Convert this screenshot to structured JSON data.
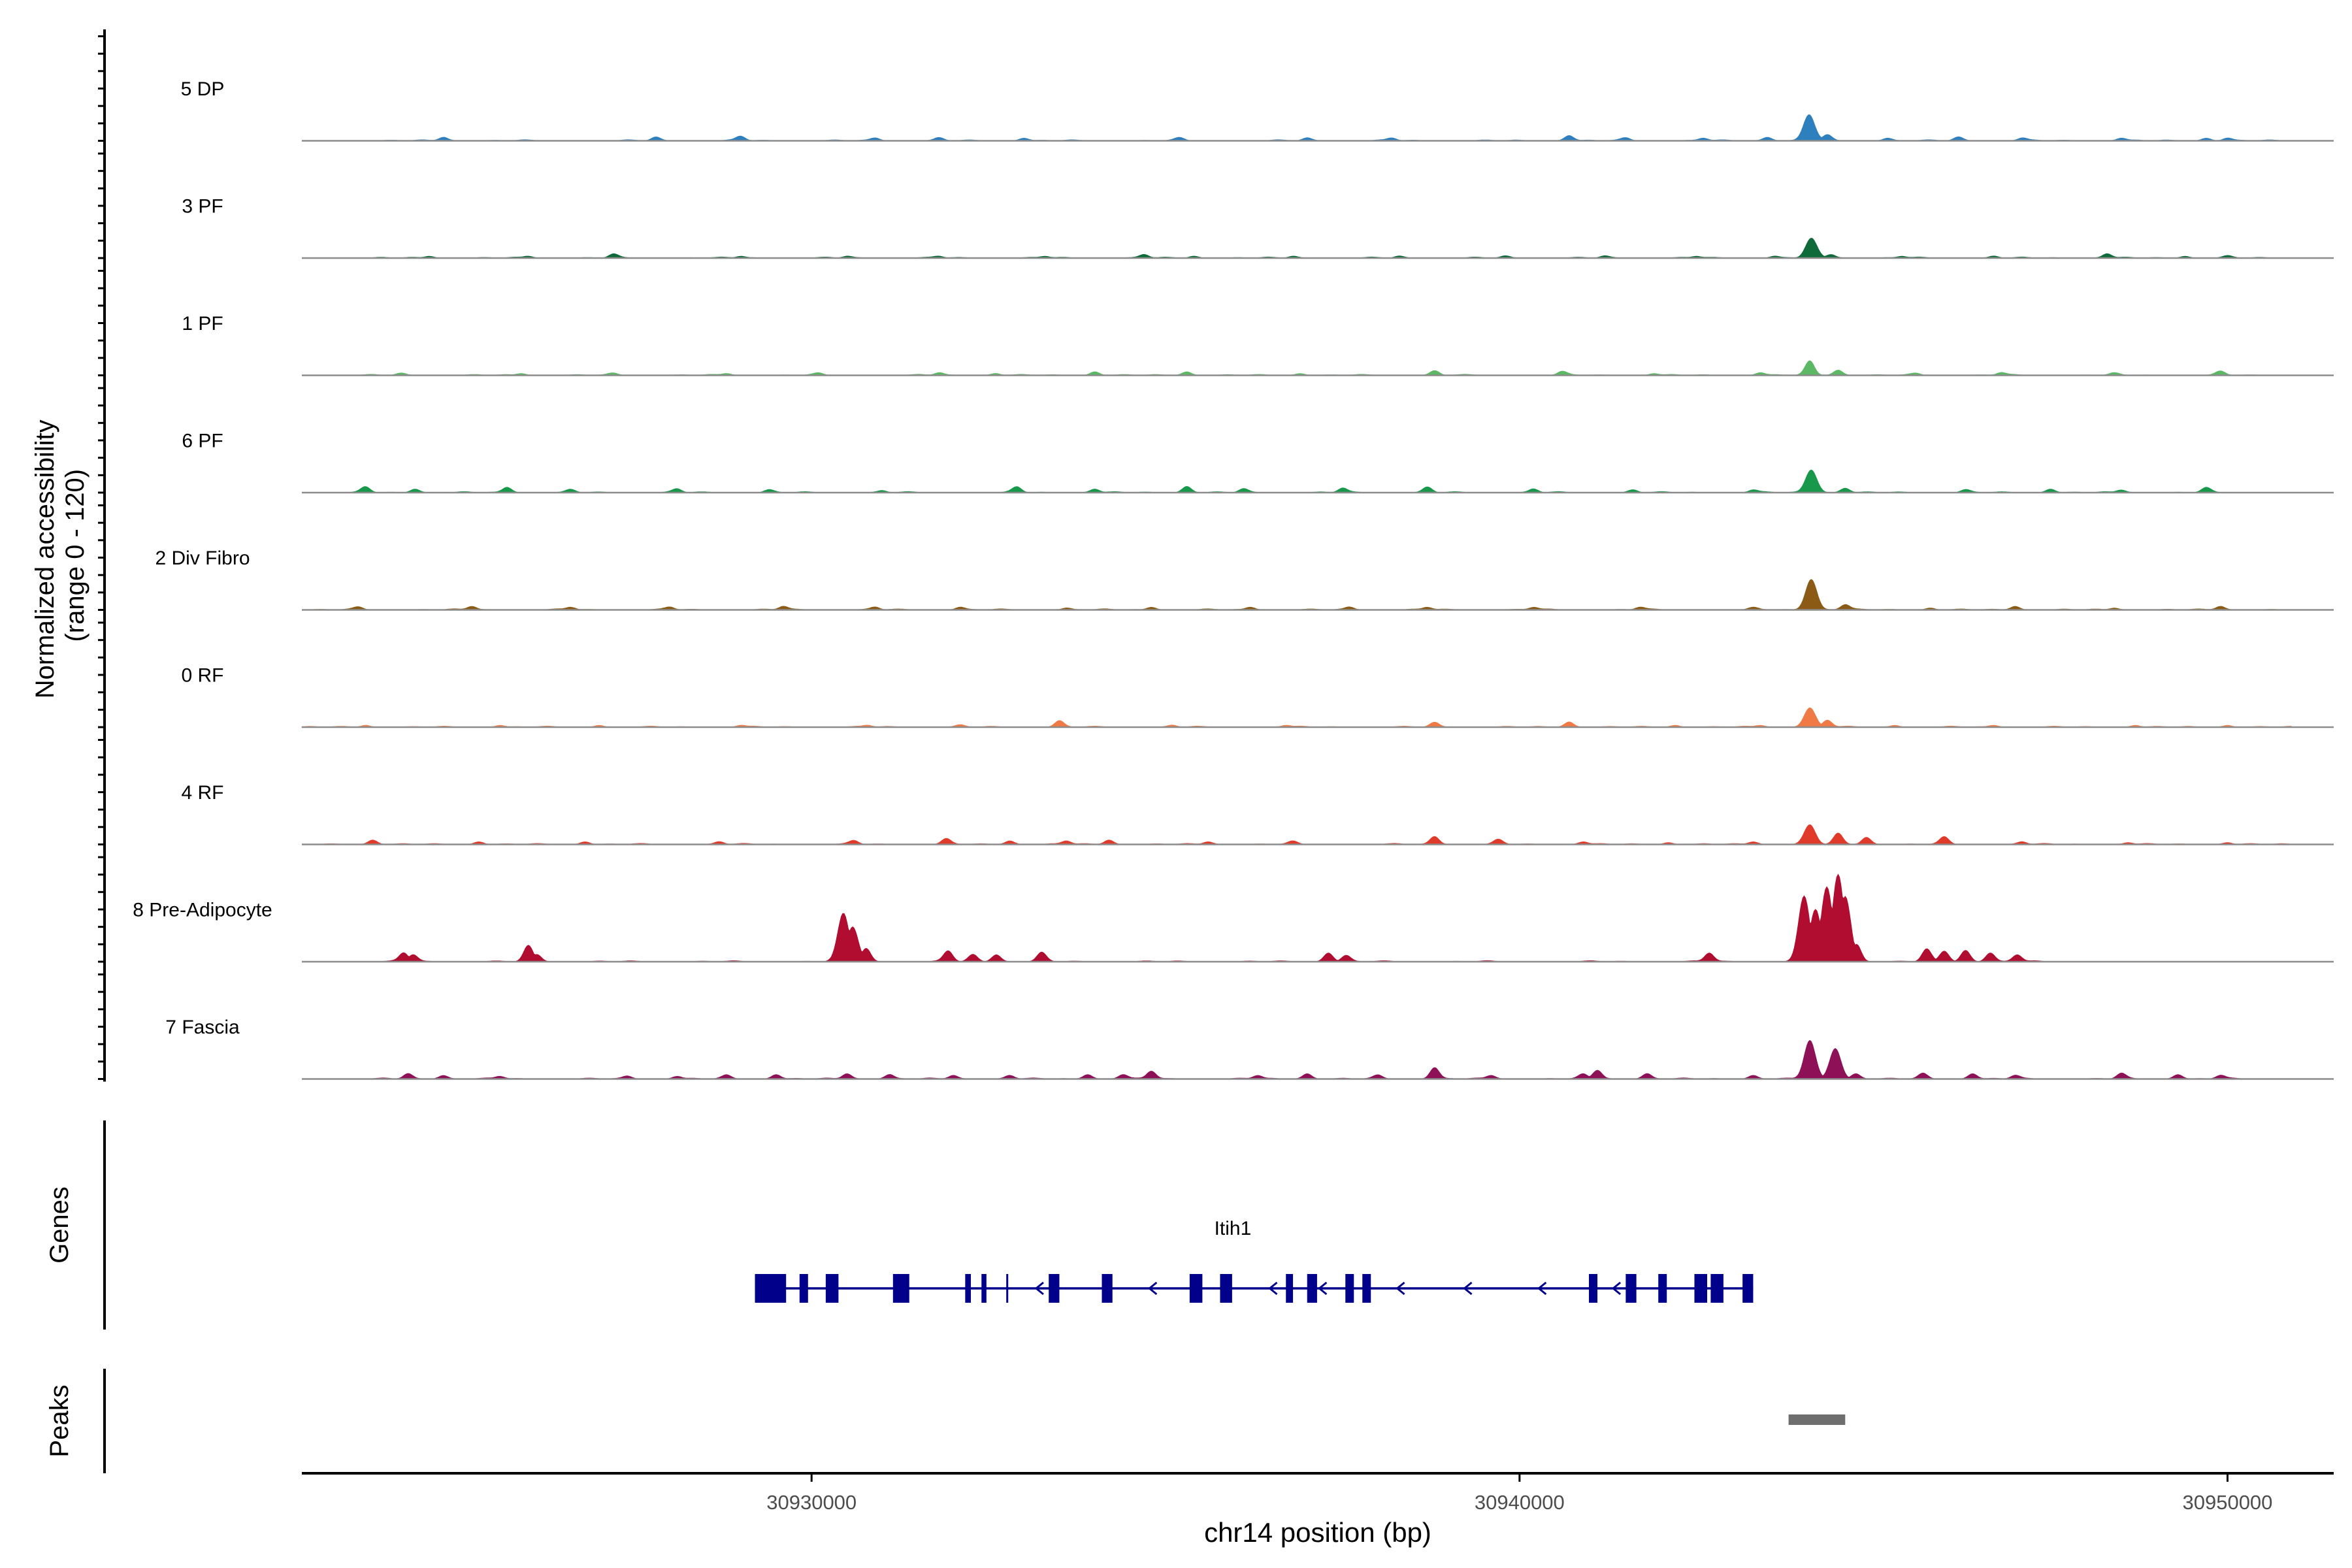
{
  "chart_data": {
    "type": "genome-coverage-area",
    "y_axis_label_line1": "Normalized accessibility",
    "y_axis_label_line2": "(range 0 - 120)",
    "y_range": [
      0,
      120
    ],
    "x_axis_label": "chr14 position (bp)",
    "x_range": [
      30922800,
      30951500
    ],
    "x_ticks": [
      {
        "value": 30930000,
        "label": "30930000"
      },
      {
        "value": 30940000,
        "label": "30940000"
      },
      {
        "value": 30950000,
        "label": "30950000"
      }
    ],
    "tracks": [
      {
        "name": "5 DP",
        "color": "#2E7FBE",
        "peaks": [
          [
            30924800,
            4
          ],
          [
            30927800,
            4
          ],
          [
            30929000,
            5
          ],
          [
            30930900,
            3
          ],
          [
            30931800,
            3
          ],
          [
            30933000,
            3
          ],
          [
            30935200,
            3
          ],
          [
            30937000,
            3
          ],
          [
            30938200,
            3
          ],
          [
            30940700,
            6
          ],
          [
            30941500,
            3
          ],
          [
            30942600,
            3
          ],
          [
            30943500,
            4
          ],
          [
            30944090,
            30
          ],
          [
            30944350,
            6
          ],
          [
            30945200,
            3
          ],
          [
            30946200,
            4
          ],
          [
            30947100,
            3
          ],
          [
            30948500,
            3
          ],
          [
            30949700,
            3
          ],
          [
            30950000,
            3
          ]
        ]
      },
      {
        "name": "3 PF",
        "color": "#0F6A3A",
        "peaks": [
          [
            30924600,
            2
          ],
          [
            30926000,
            2
          ],
          [
            30927200,
            4
          ],
          [
            30929000,
            2
          ],
          [
            30930500,
            2
          ],
          [
            30931800,
            2
          ],
          [
            30933300,
            2
          ],
          [
            30934700,
            4
          ],
          [
            30935400,
            2
          ],
          [
            30936800,
            2
          ],
          [
            30938300,
            2
          ],
          [
            30939800,
            2
          ],
          [
            30941200,
            2
          ],
          [
            30942500,
            2
          ],
          [
            30943600,
            2
          ],
          [
            30944120,
            22
          ],
          [
            30944400,
            4
          ],
          [
            30945400,
            2
          ],
          [
            30946700,
            2
          ],
          [
            30948300,
            5
          ],
          [
            30949400,
            2
          ],
          [
            30950000,
            2
          ]
        ]
      },
      {
        "name": "1 PF",
        "color": "#5DB865",
        "peaks": [
          [
            30924200,
            2
          ],
          [
            30925900,
            2
          ],
          [
            30927200,
            2
          ],
          [
            30928800,
            2
          ],
          [
            30930100,
            2
          ],
          [
            30931800,
            3
          ],
          [
            30932600,
            2
          ],
          [
            30934000,
            4
          ],
          [
            30935300,
            4
          ],
          [
            30936900,
            2
          ],
          [
            30938800,
            5
          ],
          [
            30940600,
            4
          ],
          [
            30941900,
            2
          ],
          [
            30943400,
            3
          ],
          [
            30944100,
            16
          ],
          [
            30944500,
            6
          ],
          [
            30945600,
            2
          ],
          [
            30946800,
            3
          ],
          [
            30948400,
            2
          ],
          [
            30949900,
            4
          ]
        ]
      },
      {
        "name": "6 PF",
        "color": "#17984A",
        "peaks": [
          [
            30923700,
            6
          ],
          [
            30924400,
            4
          ],
          [
            30925700,
            6
          ],
          [
            30926600,
            3
          ],
          [
            30928100,
            4
          ],
          [
            30929400,
            3
          ],
          [
            30931000,
            2
          ],
          [
            30932900,
            6
          ],
          [
            30934000,
            4
          ],
          [
            30935300,
            7
          ],
          [
            30936100,
            4
          ],
          [
            30937500,
            5
          ],
          [
            30938700,
            6
          ],
          [
            30940200,
            4
          ],
          [
            30941600,
            3
          ],
          [
            30943300,
            3
          ],
          [
            30944120,
            26
          ],
          [
            30944600,
            5
          ],
          [
            30946300,
            3
          ],
          [
            30947500,
            4
          ],
          [
            30948500,
            3
          ],
          [
            30949700,
            5
          ]
        ]
      },
      {
        "name": "2 Div Fibro",
        "color": "#8B5A14",
        "peaks": [
          [
            30923600,
            3
          ],
          [
            30925200,
            4
          ],
          [
            30926600,
            3
          ],
          [
            30928000,
            3
          ],
          [
            30929600,
            4
          ],
          [
            30930900,
            3
          ],
          [
            30932100,
            3
          ],
          [
            30933600,
            2
          ],
          [
            30934800,
            3
          ],
          [
            30936200,
            3
          ],
          [
            30937600,
            3
          ],
          [
            30938700,
            3
          ],
          [
            30940200,
            3
          ],
          [
            30941700,
            3
          ],
          [
            30943300,
            2
          ],
          [
            30944120,
            35
          ],
          [
            30944600,
            6
          ],
          [
            30945800,
            2
          ],
          [
            30947000,
            4
          ],
          [
            30948400,
            2
          ],
          [
            30949900,
            4
          ]
        ]
      },
      {
        "name": "0 RF",
        "color": "#F07A45",
        "peaks": [
          [
            30923700,
            2
          ],
          [
            30925600,
            2
          ],
          [
            30927000,
            2
          ],
          [
            30929000,
            2
          ],
          [
            30930800,
            2
          ],
          [
            30932100,
            2
          ],
          [
            30933500,
            7
          ],
          [
            30935100,
            2
          ],
          [
            30936700,
            2
          ],
          [
            30938800,
            5
          ],
          [
            30940700,
            6
          ],
          [
            30942200,
            2
          ],
          [
            30943400,
            2
          ],
          [
            30944100,
            22
          ],
          [
            30944350,
            8
          ],
          [
            30945300,
            2
          ],
          [
            30946700,
            2
          ],
          [
            30948700,
            2
          ],
          [
            30950000,
            2
          ]
        ]
      },
      {
        "name": "4 RF",
        "color": "#E03A2A",
        "peaks": [
          [
            30923800,
            5
          ],
          [
            30925300,
            3
          ],
          [
            30926800,
            3
          ],
          [
            30928700,
            3
          ],
          [
            30930600,
            4
          ],
          [
            30931900,
            6
          ],
          [
            30932800,
            4
          ],
          [
            30933600,
            4
          ],
          [
            30934200,
            5
          ],
          [
            30935600,
            3
          ],
          [
            30936800,
            3
          ],
          [
            30938800,
            9
          ],
          [
            30939700,
            5
          ],
          [
            30940900,
            3
          ],
          [
            30942100,
            2
          ],
          [
            30943300,
            3
          ],
          [
            30944100,
            22
          ],
          [
            30944500,
            12
          ],
          [
            30944900,
            8
          ],
          [
            30946000,
            8
          ],
          [
            30947100,
            3
          ],
          [
            30948600,
            2
          ],
          [
            30950000,
            2
          ]
        ]
      },
      {
        "name": "8 Pre-Adipocyte",
        "color": "#B00D30",
        "peaks": [
          [
            30924240,
            10
          ],
          [
            30924370,
            8
          ],
          [
            30926000,
            18
          ],
          [
            30926120,
            8
          ],
          [
            30930450,
            55
          ],
          [
            30930580,
            40
          ],
          [
            30930770,
            15
          ],
          [
            30931930,
            12
          ],
          [
            30932280,
            8
          ],
          [
            30932610,
            8
          ],
          [
            30933250,
            10
          ],
          [
            30937300,
            10
          ],
          [
            30937550,
            7
          ],
          [
            30942680,
            10
          ],
          [
            30944020,
            75
          ],
          [
            30944180,
            60
          ],
          [
            30944340,
            85
          ],
          [
            30944500,
            100
          ],
          [
            30944600,
            75
          ],
          [
            30944760,
            20
          ],
          [
            30945750,
            14
          ],
          [
            30946000,
            12
          ],
          [
            30946300,
            13
          ],
          [
            30946650,
            10
          ],
          [
            30947030,
            8
          ]
        ]
      },
      {
        "name": "7 Fascia",
        "color": "#8E1158",
        "peaks": [
          [
            30924300,
            6
          ],
          [
            30924800,
            4
          ],
          [
            30925600,
            3
          ],
          [
            30927400,
            3
          ],
          [
            30928100,
            3
          ],
          [
            30928800,
            4
          ],
          [
            30929500,
            5
          ],
          [
            30930500,
            6
          ],
          [
            30931100,
            5
          ],
          [
            30932000,
            4
          ],
          [
            30932800,
            4
          ],
          [
            30933900,
            5
          ],
          [
            30934400,
            5
          ],
          [
            30934800,
            9
          ],
          [
            30936300,
            4
          ],
          [
            30937000,
            6
          ],
          [
            30938000,
            4
          ],
          [
            30938800,
            13
          ],
          [
            30939600,
            4
          ],
          [
            30940900,
            5
          ],
          [
            30941100,
            10
          ],
          [
            30941800,
            6
          ],
          [
            30943300,
            4
          ],
          [
            30944100,
            44
          ],
          [
            30944460,
            35
          ],
          [
            30944750,
            6
          ],
          [
            30945700,
            6
          ],
          [
            30946400,
            6
          ],
          [
            30947000,
            4
          ],
          [
            30948500,
            6
          ],
          [
            30949300,
            5
          ],
          [
            30949900,
            4
          ]
        ]
      }
    ],
    "genes_track_label": "Genes",
    "gene": {
      "name": "Itih1",
      "strand": "-",
      "start": 30929200,
      "end": 30943300,
      "exons": [
        [
          30929200,
          30929640
        ],
        [
          30929830,
          30929950
        ],
        [
          30930200,
          30930380
        ],
        [
          30931150,
          30931380
        ],
        [
          30932170,
          30932250
        ],
        [
          30932400,
          30932470
        ],
        [
          30932750,
          30932770
        ],
        [
          30933350,
          30933500
        ],
        [
          30934100,
          30934250
        ],
        [
          30935340,
          30935520
        ],
        [
          30935770,
          30935940
        ],
        [
          30936700,
          30936800
        ],
        [
          30937000,
          30937140
        ],
        [
          30937540,
          30937660
        ],
        [
          30937780,
          30937900
        ],
        [
          30940980,
          30941100
        ],
        [
          30941500,
          30941650
        ],
        [
          30941960,
          30942080
        ],
        [
          30942470,
          30942650
        ],
        [
          30942700,
          30942880
        ],
        [
          30943150,
          30943300
        ]
      ],
      "arrows": [
        30933200,
        30934800,
        30936500,
        30937200,
        30938300,
        30939250,
        30940300,
        30941350
      ]
    },
    "peaks_track_label": "Peaks",
    "peak_regions": [
      [
        30943800,
        30944600
      ]
    ]
  }
}
